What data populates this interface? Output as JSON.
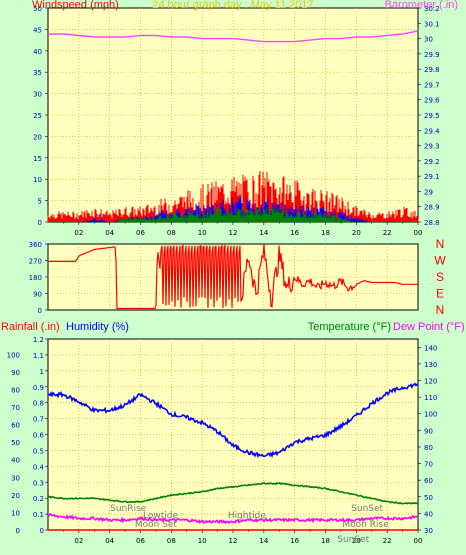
{
  "colors": {
    "background": "#ccffcc",
    "plot": "#ffffc0",
    "grid": "#e8a000",
    "wind": "#ff0000",
    "gust": "#ff0000",
    "windAvg": "#0000ff",
    "windLow": "#008000",
    "barometer": "#ff44ff",
    "direction": "#ff0000",
    "humidity": "#0000ff",
    "temperature": "#008000",
    "dewpoint": "#ff00ff",
    "rain": "#ff0000",
    "axisText": "#0000aa"
  },
  "chart_data": [
    {
      "type": "line",
      "title": "24 hour graph day : May 11 2017",
      "ylabel": "Windspeed (mph)",
      "y2label": "Barometer (.in)",
      "ylim": [
        0,
        50
      ],
      "y2lim": [
        28.8,
        30.2
      ],
      "yticks": [
        "0",
        "5",
        "10",
        "15",
        "20",
        "25",
        "30",
        "35",
        "40",
        "45",
        "50"
      ],
      "y2ticks": [
        "28.8",
        "28.9",
        "29",
        "29.1",
        "29.2",
        "29.3",
        "29.4",
        "29.5",
        "29.6",
        "29.7",
        "29.8",
        "29.9",
        "30",
        "30.1",
        "30.2"
      ],
      "xlim": [
        0,
        24
      ],
      "xticks": [
        "02",
        "04",
        "06",
        "08",
        "10",
        "12",
        "14",
        "16",
        "18",
        "20",
        "22",
        "00"
      ],
      "grid": true,
      "series": [
        {
          "name": "Barometer (.in)",
          "axis": "right",
          "x": [
            0,
            1,
            2,
            3,
            4,
            5,
            6,
            7,
            8,
            9,
            10,
            11,
            12,
            13,
            14,
            15,
            16,
            17,
            18,
            19,
            20,
            21,
            22,
            23,
            24
          ],
          "values": [
            30.03,
            30.03,
            30.02,
            30.01,
            30.01,
            30.01,
            30.02,
            30.02,
            30.01,
            30.01,
            30.0,
            30.0,
            30.0,
            29.99,
            29.98,
            29.98,
            29.98,
            29.99,
            30.0,
            30.0,
            30.01,
            30.01,
            30.02,
            30.03,
            30.05
          ]
        },
        {
          "name": "Wind gust",
          "axis": "left",
          "x": [
            0,
            1,
            2,
            3,
            4,
            5,
            6,
            7,
            8,
            9,
            10,
            11,
            12,
            13,
            14,
            15,
            16,
            17,
            18,
            19,
            20,
            21,
            22,
            23,
            24
          ],
          "values": [
            2,
            2,
            2,
            3,
            2,
            3,
            3,
            4,
            5,
            6,
            7,
            8,
            9,
            9,
            10,
            9,
            8,
            7,
            6,
            5,
            3,
            2,
            2,
            3,
            2
          ]
        },
        {
          "name": "Wind speed",
          "axis": "left",
          "x": [
            0,
            1,
            2,
            3,
            4,
            5,
            6,
            7,
            8,
            9,
            10,
            11,
            12,
            13,
            14,
            15,
            16,
            17,
            18,
            19,
            20,
            21,
            22,
            23,
            24
          ],
          "values": [
            0,
            0,
            0,
            1,
            0,
            1,
            1,
            2,
            3,
            3,
            4,
            4,
            5,
            5,
            5,
            4,
            4,
            3,
            3,
            2,
            1,
            0,
            0,
            0,
            0
          ]
        },
        {
          "name": "Wind average",
          "axis": "left",
          "x": [
            0,
            1,
            2,
            3,
            4,
            5,
            6,
            7,
            8,
            9,
            10,
            11,
            12,
            13,
            14,
            15,
            16,
            17,
            18,
            19,
            20,
            21,
            22,
            23,
            24
          ],
          "values": [
            0,
            0,
            0,
            0,
            0,
            1,
            1,
            1,
            2,
            2,
            2,
            3,
            3,
            3,
            3,
            3,
            2,
            2,
            2,
            1,
            0,
            0,
            0,
            0,
            0
          ]
        }
      ]
    },
    {
      "type": "line",
      "ylim": [
        0,
        360
      ],
      "yticks": [
        "0",
        "90",
        "180",
        "270",
        "360"
      ],
      "compass": [
        "N",
        "W",
        "S",
        "E",
        "N"
      ],
      "xlim": [
        0,
        24
      ],
      "grid": true,
      "series": [
        {
          "name": "Wind direction",
          "x": [
            0,
            1.8,
            2,
            3,
            4.4,
            4.45,
            7,
            7.1,
            7.5,
            8,
            8.5,
            9,
            9.5,
            10,
            10.5,
            11,
            11.5,
            12,
            12.5,
            13,
            13.5,
            14,
            14.5,
            15,
            15.5,
            16,
            16.5,
            17,
            17.5,
            18,
            18.5,
            19,
            19.5,
            20,
            20.5,
            21,
            21.5,
            22,
            22.5,
            23,
            24
          ],
          "values": [
            265,
            265,
            295,
            330,
            345,
            8,
            8,
            340,
            60,
            345,
            30,
            345,
            40,
            340,
            20,
            330,
            60,
            340,
            40,
            300,
            90,
            330,
            60,
            300,
            120,
            180,
            140,
            160,
            120,
            150,
            130,
            155,
            120,
            140,
            160,
            150,
            150,
            150,
            150,
            140,
            140
          ]
        }
      ]
    },
    {
      "type": "line",
      "ylabel": "Rainfall (.in)",
      "ylabel2": "Humidity (%)",
      "y2label": "Temperature (°F)",
      "y2label2": "Dew Point (°F)",
      "ylim": [
        0,
        1.2
      ],
      "yticks": [
        "0",
        "0.1",
        "0.2",
        "0.3",
        "0.4",
        "0.5",
        "0.6",
        "0.7",
        "0.8",
        "0.9",
        "1",
        "1.1",
        "1.2"
      ],
      "humidity_ticks": [
        "0",
        "10",
        "20",
        "30",
        "40",
        "50",
        "60",
        "70",
        "80",
        "90",
        "100"
      ],
      "y2lim": [
        30,
        145
      ],
      "y2ticks": [
        "30",
        "40",
        "50",
        "60",
        "70",
        "80",
        "90",
        "100",
        "110",
        "120",
        "130",
        "140"
      ],
      "xlim": [
        0,
        24
      ],
      "xticks": [
        "02",
        "04",
        "06",
        "08",
        "10",
        "12",
        "14",
        "16",
        "18",
        "20",
        "22",
        "00"
      ],
      "grid": true,
      "annotations": [
        {
          "text": "SunRise",
          "x": 5.2,
          "pos": "upper"
        },
        {
          "text": "Lowtide",
          "x": 7.3,
          "pos": "mid"
        },
        {
          "text": "Moon Set",
          "x": 7.0,
          "pos": "lower"
        },
        {
          "text": "Hightide",
          "x": 12.9,
          "pos": "mid"
        },
        {
          "text": "SunSet",
          "x": 20.7,
          "pos": "upper"
        },
        {
          "text": "Moon Rise",
          "x": 20.6,
          "pos": "lower"
        },
        {
          "text": "SunSet",
          "x": 19.8,
          "pos": "bottom"
        }
      ],
      "series": [
        {
          "name": "Humidity (%)",
          "axis": "humidity",
          "x": [
            0,
            1,
            2,
            3,
            4,
            5,
            6,
            7,
            8,
            9,
            10,
            11,
            12,
            13,
            14,
            15,
            16,
            17,
            18,
            19,
            20,
            21,
            22,
            23,
            24
          ],
          "values": [
            77,
            77,
            73,
            68,
            68,
            71,
            77,
            72,
            66,
            64,
            61,
            56,
            48,
            44,
            42,
            44,
            50,
            52,
            54,
            59,
            65,
            72,
            78,
            81,
            83
          ]
        },
        {
          "name": "Temperature (°F)",
          "axis": "right",
          "x": [
            0,
            1,
            2,
            3,
            4,
            5,
            6,
            7,
            8,
            9,
            10,
            11,
            12,
            13,
            14,
            15,
            16,
            17,
            18,
            19,
            20,
            21,
            22,
            23,
            24
          ],
          "values": [
            50,
            49,
            49,
            49,
            48,
            47,
            47,
            49,
            51,
            52,
            53,
            55,
            56,
            57,
            58,
            58,
            57,
            56,
            55,
            53,
            51,
            49,
            47,
            46,
            46
          ]
        },
        {
          "name": "Dew Point (°F)",
          "axis": "right",
          "x": [
            0,
            1,
            2,
            3,
            4,
            5,
            6,
            7,
            8,
            9,
            10,
            11,
            12,
            13,
            14,
            15,
            16,
            17,
            18,
            19,
            20,
            21,
            22,
            23,
            24
          ],
          "values": [
            39,
            38,
            37,
            37,
            36,
            36,
            37,
            36,
            36,
            36,
            35,
            35,
            35,
            36,
            36,
            36,
            36,
            36,
            36,
            36,
            36,
            37,
            37,
            37,
            38
          ]
        },
        {
          "name": "Rainfall (.in)",
          "axis": "left",
          "x": [
            0,
            24
          ],
          "values": [
            0,
            0
          ]
        }
      ]
    }
  ]
}
